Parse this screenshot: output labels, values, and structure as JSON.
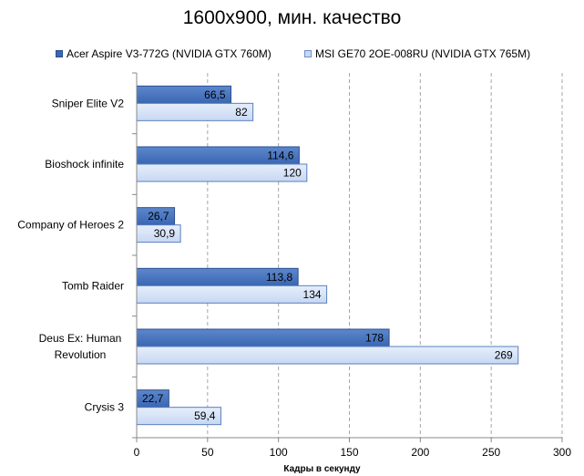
{
  "chart_data": {
    "type": "bar",
    "orientation": "horizontal",
    "title": "1600x900, мин. качество",
    "xlabel": "Кадры  в секунду",
    "ylabel": "",
    "xlim": [
      0,
      300
    ],
    "xticks": [
      0,
      50,
      100,
      150,
      200,
      250,
      300
    ],
    "grid": "vertical-dashed",
    "legend_position": "top",
    "categories": [
      [
        "Sniper Elite V2"
      ],
      [
        "Bioshock infinite"
      ],
      [
        "Company of Heroes 2"
      ],
      [
        "Tomb Raider"
      ],
      [
        "Deus Ex: Human",
        "Revolution"
      ],
      [
        "Crysis 3"
      ]
    ],
    "series": [
      {
        "name": "Acer Aspire V3-772G (NVIDIA GTX 760M)",
        "values": [
          66.5,
          114.6,
          26.7,
          113.8,
          178,
          22.7
        ],
        "labels": [
          "66,5",
          "114,6",
          "26,7",
          "113,8",
          "178",
          "22,7"
        ],
        "color": "#3a67b3",
        "color_light": "#5d87cc"
      },
      {
        "name": "MSI GE70 2OE-008RU (NVIDIA GTX 765M)",
        "values": [
          82,
          120,
          30.9,
          134,
          269,
          59.4
        ],
        "labels": [
          "82",
          "120",
          "30,9",
          "134",
          "269",
          "59,4"
        ],
        "color": "#c7d8f3",
        "color_light": "#e6eefb"
      }
    ]
  }
}
